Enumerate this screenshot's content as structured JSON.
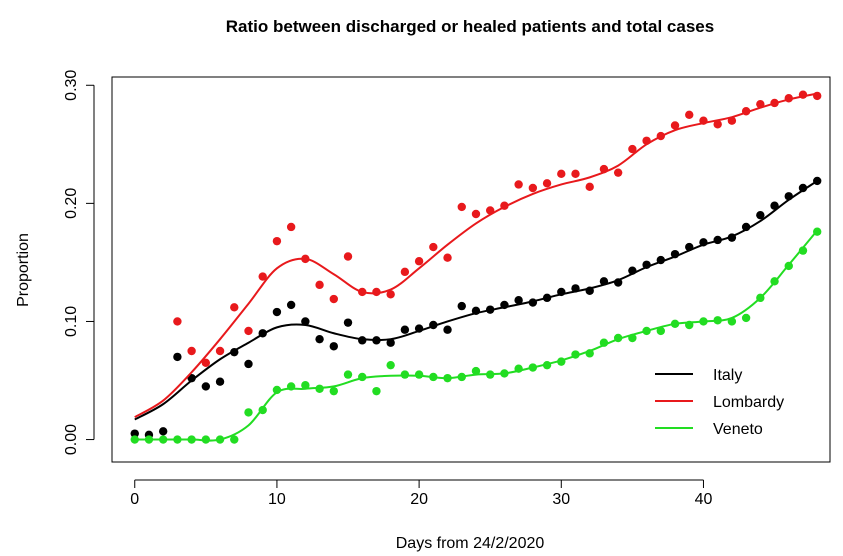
{
  "chart_data": {
    "type": "scatter",
    "title": "Ratio between discharged or healed patients and total cases",
    "xlabel": "Days from 24/2/2020",
    "ylabel": "Proportion",
    "xlim": [
      -1.6,
      48.9
    ],
    "ylim": [
      -0.019,
      0.307
    ],
    "xticks": [
      0,
      10,
      20,
      30,
      40
    ],
    "yticks": [
      {
        "value": 0,
        "label": "0.00"
      },
      {
        "value": 0.1,
        "label": "0.10"
      },
      {
        "value": 0.2,
        "label": "0.20"
      },
      {
        "value": 0.3,
        "label": "0.30"
      }
    ],
    "legend": "bottom-right",
    "x": [
      0,
      1,
      2,
      3,
      4,
      5,
      6,
      7,
      8,
      9,
      10,
      11,
      12,
      13,
      14,
      15,
      16,
      17,
      18,
      19,
      20,
      21,
      22,
      23,
      24,
      25,
      26,
      27,
      28,
      29,
      30,
      31,
      32,
      33,
      34,
      35,
      36,
      37,
      38,
      39,
      40,
      41,
      42,
      43,
      44,
      45,
      46,
      47,
      48
    ],
    "fit_x": [
      0,
      2,
      4,
      6,
      8,
      10,
      12,
      14,
      16,
      18,
      20,
      22,
      24,
      26,
      28,
      30,
      32,
      34,
      36,
      38,
      40,
      42,
      44,
      46,
      48
    ],
    "series": [
      {
        "name": "Italy",
        "color": "#000000",
        "values": [
          0.005,
          0.004,
          0.007,
          0.07,
          0.052,
          0.045,
          0.049,
          0.074,
          0.064,
          0.09,
          0.108,
          0.114,
          0.1,
          0.085,
          0.079,
          0.099,
          0.084,
          0.084,
          0.082,
          0.093,
          0.094,
          0.097,
          0.093,
          0.113,
          0.109,
          0.11,
          0.114,
          0.118,
          0.116,
          0.12,
          0.125,
          0.128,
          0.126,
          0.134,
          0.133,
          0.143,
          0.148,
          0.152,
          0.157,
          0.163,
          0.167,
          0.169,
          0.171,
          0.18,
          0.19,
          0.198,
          0.206,
          0.213,
          0.219
        ],
        "fit": [
          0.017,
          0.03,
          0.05,
          0.068,
          0.082,
          0.095,
          0.097,
          0.09,
          0.085,
          0.085,
          0.092,
          0.1,
          0.107,
          0.112,
          0.117,
          0.123,
          0.128,
          0.135,
          0.146,
          0.155,
          0.165,
          0.172,
          0.185,
          0.203,
          0.219
        ]
      },
      {
        "name": "Lombardy",
        "color": "#e8191c",
        "values": [
          null,
          null,
          null,
          0.1,
          0.075,
          0.065,
          0.075,
          0.112,
          0.092,
          0.138,
          0.168,
          0.18,
          0.153,
          0.131,
          0.119,
          0.155,
          0.125,
          0.125,
          0.123,
          0.142,
          0.151,
          0.163,
          0.154,
          0.197,
          0.191,
          0.194,
          0.198,
          0.216,
          0.213,
          0.217,
          0.225,
          0.225,
          0.214,
          0.229,
          0.226,
          0.246,
          0.253,
          0.257,
          0.266,
          0.275,
          0.27,
          0.267,
          0.27,
          0.278,
          0.284,
          0.285,
          0.289,
          0.292,
          0.291
        ],
        "fit": [
          0.019,
          0.033,
          0.057,
          0.085,
          0.115,
          0.145,
          0.153,
          0.14,
          0.125,
          0.127,
          0.145,
          0.165,
          0.183,
          0.197,
          0.208,
          0.216,
          0.222,
          0.232,
          0.25,
          0.262,
          0.268,
          0.273,
          0.281,
          0.288,
          0.293
        ]
      },
      {
        "name": "Veneto",
        "color": "#22dd22",
        "values": [
          0,
          0,
          0,
          0,
          0,
          0,
          0,
          0,
          0.023,
          0.025,
          0.042,
          0.045,
          0.046,
          0.043,
          0.041,
          0.055,
          0.053,
          0.041,
          0.063,
          0.055,
          0.055,
          0.053,
          0.052,
          0.053,
          0.058,
          0.055,
          0.056,
          0.06,
          0.061,
          0.063,
          0.066,
          0.072,
          0.073,
          0.082,
          0.086,
          0.086,
          0.092,
          0.092,
          0.098,
          0.097,
          0.1,
          0.101,
          0.1,
          0.103,
          0.12,
          0.134,
          0.147,
          0.16,
          0.176
        ],
        "fit": [
          0,
          0,
          0,
          0,
          0.012,
          0.04,
          0.043,
          0.045,
          0.052,
          0.054,
          0.054,
          0.052,
          0.055,
          0.056,
          0.061,
          0.067,
          0.075,
          0.085,
          0.092,
          0.098,
          0.1,
          0.103,
          0.12,
          0.148,
          0.177
        ]
      }
    ]
  }
}
